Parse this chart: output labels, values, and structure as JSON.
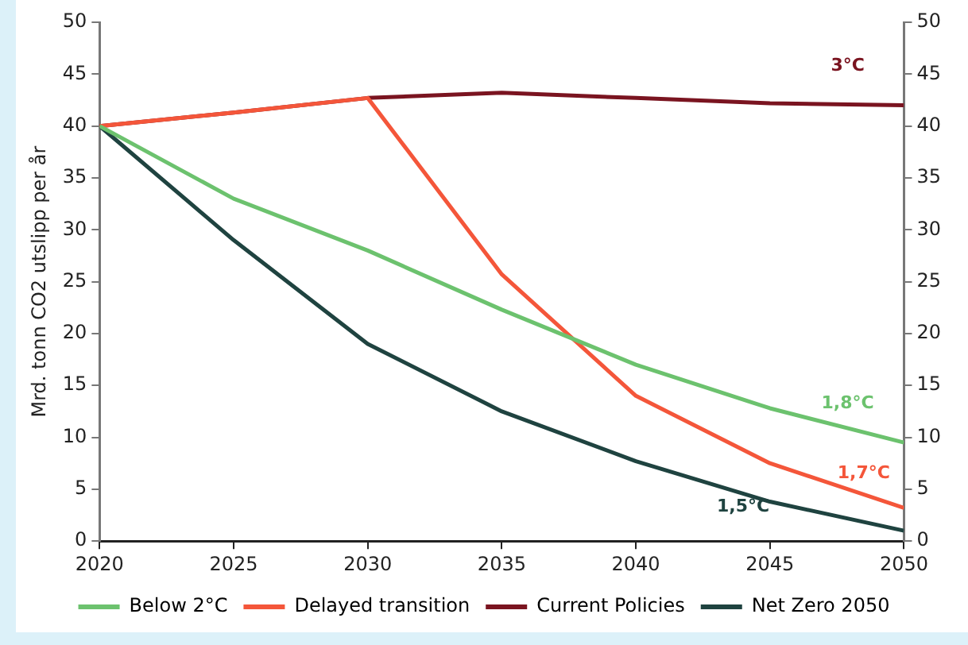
{
  "chart_data": {
    "type": "line",
    "ylabel": "Mrd. tonn CO2 utslipp per år",
    "x": [
      2020,
      2025,
      2030,
      2035,
      2040,
      2045,
      2050
    ],
    "xlim": [
      2020,
      2050
    ],
    "xticks": [
      2020,
      2025,
      2030,
      2035,
      2040,
      2045,
      2050
    ],
    "ylim": [
      0,
      50
    ],
    "yticks": [
      0,
      5,
      10,
      15,
      20,
      25,
      30,
      35,
      40,
      45,
      50
    ],
    "y2lim": [
      0,
      50
    ],
    "y2ticks": [
      0,
      5,
      10,
      15,
      20,
      25,
      30,
      35,
      40,
      45,
      50
    ],
    "grid": false,
    "legend": "bottom",
    "marker": "none",
    "line_style": "solid",
    "series": [
      {
        "name": "Below 2°C",
        "color": "#6cc26e",
        "values": [
          40,
          33,
          28,
          22.3,
          17,
          12.8,
          9.5
        ]
      },
      {
        "name": "Delayed transition",
        "color": "#f4563a",
        "values": [
          40,
          41.3,
          42.7,
          25.7,
          14,
          7.5,
          3.2
        ]
      },
      {
        "name": "Current Policies",
        "color": "#7a1420",
        "values": [
          40,
          41.3,
          42.7,
          43.2,
          42.7,
          42.2,
          42
        ]
      },
      {
        "name": "Net Zero 2050",
        "color": "#1f4340",
        "values": [
          40,
          29,
          19,
          12.5,
          7.7,
          3.8,
          1
        ]
      }
    ],
    "annotations": [
      "3°C",
      "1,8°C",
      "1,7°C",
      "1,5°C"
    ]
  }
}
